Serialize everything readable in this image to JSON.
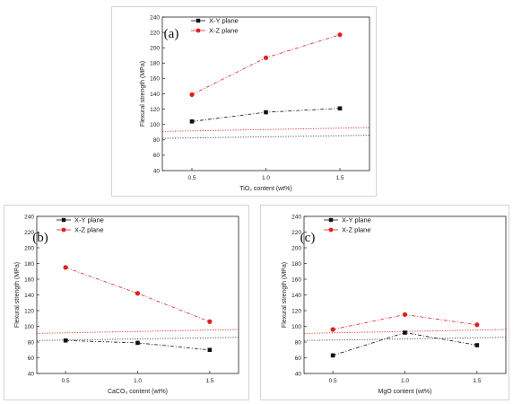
{
  "colors": {
    "xy": "#111111",
    "xz": "#e02020",
    "ref": "#444444",
    "axis": "#222222"
  },
  "chart_data": [
    {
      "type": "line",
      "panel_label": "(a)",
      "xlabel": "TiO₂ content (wt%)",
      "ylabel": "Flexural strength (MPa)",
      "ylim": [
        40,
        240
      ],
      "yticks": [
        40,
        60,
        80,
        100,
        120,
        140,
        160,
        180,
        200,
        220,
        240
      ],
      "xlim": [
        0.3,
        1.7
      ],
      "xticks": [
        0.5,
        1.0,
        1.5
      ],
      "xtick_labels": [
        "0.5",
        "1.0",
        "1.5"
      ],
      "legend": "top-left",
      "x": [
        0.5,
        1.0,
        1.5
      ],
      "series": [
        {
          "name": "X-Y plane",
          "marker": "square",
          "values": [
            104,
            116,
            121
          ]
        },
        {
          "name": "X-Z plane",
          "marker": "circle",
          "values": [
            139,
            187,
            217
          ]
        }
      ],
      "reference_lines": [
        {
          "style": "xz",
          "y_start": 91,
          "y_end": 96
        },
        {
          "style": "xy",
          "y_start": 82,
          "y_end": 86
        }
      ]
    },
    {
      "type": "line",
      "panel_label": "(b)",
      "xlabel": "CaCO₃ content (wt%)",
      "ylabel": "Flexural strength (MPa)",
      "ylim": [
        40,
        240
      ],
      "yticks": [
        40,
        60,
        80,
        100,
        120,
        140,
        160,
        180,
        200,
        220,
        240
      ],
      "xlim": [
        0.3,
        1.7
      ],
      "xticks": [
        0.5,
        1.0,
        1.5
      ],
      "xtick_labels": [
        "0.5",
        "1.0",
        "1.5"
      ],
      "legend": "top-left",
      "x": [
        0.5,
        1.0,
        1.5
      ],
      "series": [
        {
          "name": "X-Y plane",
          "marker": "square",
          "values": [
            82,
            79,
            70
          ]
        },
        {
          "name": "X-Z plane",
          "marker": "circle",
          "values": [
            175,
            142,
            106
          ]
        }
      ],
      "reference_lines": [
        {
          "style": "xz",
          "y_start": 91,
          "y_end": 96
        },
        {
          "style": "xy",
          "y_start": 82,
          "y_end": 86
        }
      ]
    },
    {
      "type": "line",
      "panel_label": "(c)",
      "xlabel": "MgO content (wt%)",
      "ylabel": "Flexural strength (MPa)",
      "ylim": [
        40,
        240
      ],
      "yticks": [
        40,
        60,
        80,
        100,
        120,
        140,
        160,
        180,
        200,
        220,
        240
      ],
      "xlim": [
        0.3,
        1.7
      ],
      "xticks": [
        0.5,
        1.0,
        1.5
      ],
      "xtick_labels": [
        "0.5",
        "1.0",
        "1.5"
      ],
      "legend": "top-left",
      "x": [
        0.5,
        1.0,
        1.5
      ],
      "series": [
        {
          "name": "X-Y plane",
          "marker": "square",
          "values": [
            63,
            92,
            76
          ]
        },
        {
          "name": "X-Z plane",
          "marker": "circle",
          "values": [
            96,
            115,
            102
          ]
        }
      ],
      "reference_lines": [
        {
          "style": "xz",
          "y_start": 91,
          "y_end": 96
        },
        {
          "style": "xy",
          "y_start": 82,
          "y_end": 86
        }
      ]
    }
  ]
}
